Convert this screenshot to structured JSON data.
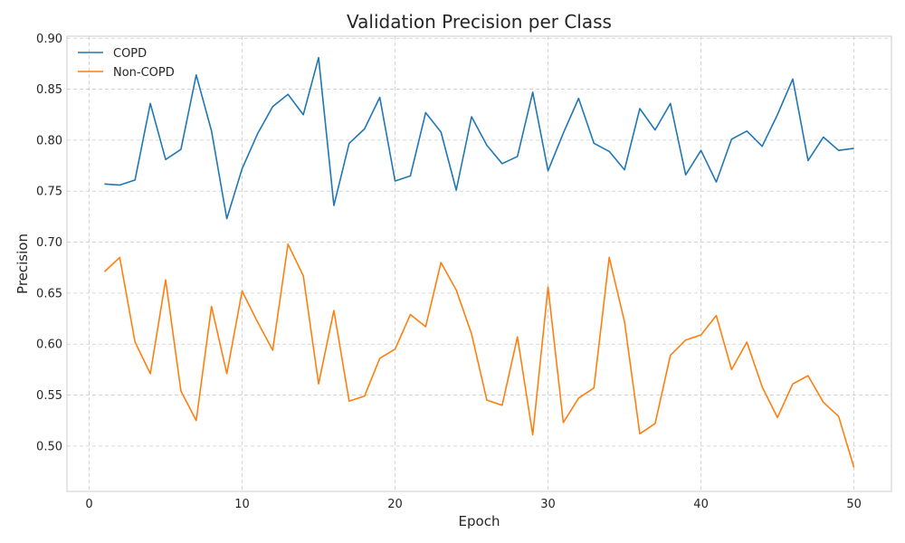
{
  "chart_data": {
    "type": "line",
    "title": "Validation Precision per Class",
    "xlabel": "Epoch",
    "ylabel": "Precision",
    "xlim": [
      -1.45,
      52.45
    ],
    "ylim": [
      0.4555,
      0.902
    ],
    "xticks": [
      0,
      10,
      20,
      30,
      40,
      50
    ],
    "yticks": [
      0.5,
      0.55,
      0.6,
      0.65,
      0.7,
      0.75,
      0.8,
      0.85,
      0.9
    ],
    "xtick_labels": [
      "0",
      "10",
      "20",
      "30",
      "40",
      "50"
    ],
    "ytick_labels": [
      "0.50",
      "0.55",
      "0.60",
      "0.65",
      "0.70",
      "0.75",
      "0.80",
      "0.85",
      "0.90"
    ],
    "grid": true,
    "legend_position": "top-left",
    "x": [
      1,
      2,
      3,
      4,
      5,
      6,
      7,
      8,
      9,
      10,
      11,
      12,
      13,
      14,
      15,
      16,
      17,
      18,
      19,
      20,
      21,
      22,
      23,
      24,
      25,
      26,
      27,
      28,
      29,
      30,
      31,
      32,
      33,
      34,
      35,
      36,
      37,
      38,
      39,
      40,
      41,
      42,
      43,
      44,
      45,
      46,
      47,
      48,
      49,
      50
    ],
    "series": [
      {
        "name": "COPD",
        "color": "#1f77b4",
        "values": [
          0.757,
          0.756,
          0.761,
          0.836,
          0.781,
          0.791,
          0.864,
          0.809,
          0.723,
          0.772,
          0.806,
          0.833,
          0.845,
          0.825,
          0.881,
          0.736,
          0.797,
          0.811,
          0.842,
          0.76,
          0.765,
          0.827,
          0.808,
          0.751,
          0.823,
          0.795,
          0.777,
          0.784,
          0.847,
          0.77,
          0.807,
          0.841,
          0.797,
          0.789,
          0.771,
          0.831,
          0.81,
          0.836,
          0.766,
          0.79,
          0.759,
          0.801,
          0.809,
          0.794,
          0.825,
          0.86,
          0.78,
          0.803,
          0.79,
          0.792
        ]
      },
      {
        "name": "Non-COPD",
        "color": "#ff7f0e",
        "values": [
          0.671,
          0.685,
          0.602,
          0.571,
          0.663,
          0.554,
          0.525,
          0.637,
          0.571,
          0.652,
          0.622,
          0.594,
          0.698,
          0.667,
          0.561,
          0.633,
          0.544,
          0.549,
          0.586,
          0.595,
          0.629,
          0.617,
          0.68,
          0.653,
          0.61,
          0.545,
          0.54,
          0.607,
          0.511,
          0.656,
          0.523,
          0.547,
          0.557,
          0.685,
          0.622,
          0.512,
          0.522,
          0.589,
          0.604,
          0.609,
          0.628,
          0.575,
          0.602,
          0.558,
          0.528,
          0.561,
          0.569,
          0.543,
          0.529,
          0.479
        ]
      }
    ]
  }
}
